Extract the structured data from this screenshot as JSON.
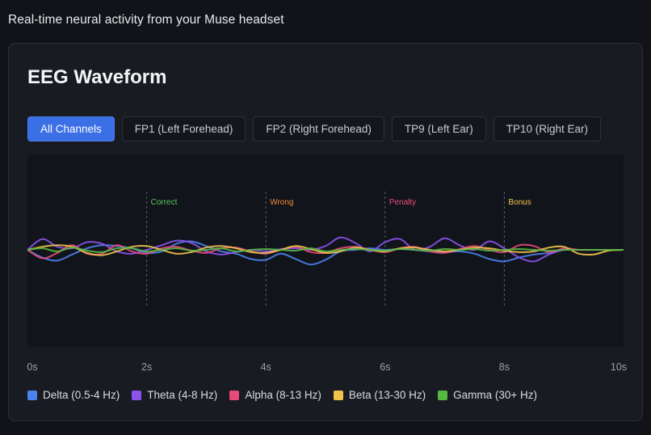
{
  "header": {
    "subtitle": "Real-time neural activity from your Muse headset"
  },
  "card": {
    "title": "EEG Waveform",
    "tabs": [
      {
        "label": "All Channels",
        "active": true
      },
      {
        "label": "FP1 (Left Forehead)",
        "active": false
      },
      {
        "label": "FP2 (Right Forehead)",
        "active": false
      },
      {
        "label": "TP9 (Left Ear)",
        "active": false
      },
      {
        "label": "TP10 (Right Ear)",
        "active": false
      }
    ]
  },
  "chart_data": {
    "type": "line",
    "xlabel": "",
    "ylabel": "",
    "xlim": [
      0,
      10
    ],
    "ylim": [
      -1,
      1
    ],
    "x_ticks": [
      "0s",
      "2s",
      "4s",
      "6s",
      "8s",
      "10s"
    ],
    "grid": false,
    "legend_position": "bottom-left",
    "events": [
      {
        "time": 2,
        "label": "Correct",
        "color": "#5cc85a"
      },
      {
        "time": 4,
        "label": "Wrong",
        "color": "#f08a3c"
      },
      {
        "time": 6,
        "label": "Penalty",
        "color": "#ec4c7a"
      },
      {
        "time": 8,
        "label": "Bonus",
        "color": "#f2c84b"
      }
    ],
    "x": [
      0,
      0.25,
      0.5,
      0.75,
      1,
      1.25,
      1.5,
      1.75,
      2,
      2.25,
      2.5,
      2.75,
      3,
      3.25,
      3.5,
      3.75,
      4,
      4.25,
      4.5,
      4.75,
      5,
      5.25,
      5.5,
      5.75,
      6,
      6.25,
      6.5,
      6.75,
      7,
      7.25,
      7.5,
      7.75,
      8,
      8.25,
      8.5,
      8.75,
      9,
      9.25,
      9.5,
      9.75,
      10
    ],
    "series": [
      {
        "name": "Delta (0.5-4 Hz)",
        "color": "#4c82f0",
        "values": [
          0,
          -0.1,
          -0.14,
          -0.06,
          0.02,
          0.06,
          0.05,
          0.02,
          -0.04,
          -0.02,
          0.08,
          0.11,
          0.05,
          -0.02,
          -0.05,
          -0.12,
          -0.13,
          -0.05,
          -0.12,
          -0.19,
          -0.13,
          -0.02,
          0.0,
          0.02,
          0.0,
          0.01,
          0.0,
          -0.02,
          -0.03,
          -0.02,
          -0.05,
          -0.12,
          -0.15,
          -0.1,
          -0.06,
          -0.04,
          0.0,
          0.0,
          0.0,
          0.0,
          0.0
        ]
      },
      {
        "name": "Theta (4-8 Hz)",
        "color": "#8c52ee",
        "values": [
          0,
          0.14,
          0.04,
          0.02,
          0.1,
          0.08,
          -0.02,
          -0.05,
          0.0,
          0.06,
          0.12,
          0.09,
          -0.02,
          -0.06,
          -0.03,
          0.0,
          -0.02,
          0.01,
          0.02,
          0.0,
          0.05,
          0.16,
          0.09,
          -0.02,
          0.1,
          0.14,
          0.0,
          0.04,
          0.15,
          0.06,
          0.0,
          0.11,
          0.02,
          -0.1,
          -0.15,
          -0.06,
          0.0,
          0.0,
          0.0,
          0.0,
          0.0
        ]
      },
      {
        "name": "Alpha (8-13 Hz)",
        "color": "#e84a78",
        "values": [
          0,
          -0.11,
          -0.04,
          0.06,
          -0.05,
          -0.05,
          0.06,
          -0.02,
          -0.05,
          0.02,
          0.04,
          -0.01,
          -0.04,
          0.02,
          0.03,
          -0.02,
          -0.05,
          0.0,
          0.04,
          -0.03,
          -0.04,
          0.02,
          0.04,
          0.0,
          -0.03,
          0.02,
          0.04,
          -0.02,
          -0.04,
          0.01,
          0.05,
          0.0,
          -0.03,
          0.06,
          0.05,
          -0.03,
          0.02,
          0.0,
          0.0,
          0.0,
          0.0
        ]
      },
      {
        "name": "Beta (13-30 Hz)",
        "color": "#f0c24a",
        "values": [
          0,
          0.04,
          0.06,
          0.04,
          -0.04,
          -0.07,
          -0.02,
          0.04,
          0.05,
          0.0,
          -0.05,
          -0.03,
          0.03,
          0.05,
          0.02,
          -0.03,
          -0.04,
          0.0,
          0.05,
          0.01,
          -0.04,
          -0.02,
          0.03,
          0.0,
          -0.02,
          0.02,
          0.03,
          0.0,
          -0.02,
          0.0,
          0.03,
          0.02,
          -0.01,
          -0.03,
          -0.02,
          0.03,
          0.04,
          -0.05,
          -0.06,
          -0.01,
          0.0
        ]
      },
      {
        "name": "Gamma (30+ Hz)",
        "color": "#57b843",
        "values": [
          0,
          0.02,
          -0.02,
          0.03,
          -0.01,
          -0.03,
          0.02,
          0.02,
          -0.02,
          0.0,
          0.02,
          -0.01,
          0.0,
          0.02,
          -0.02,
          0.0,
          0.01,
          0.0,
          -0.01,
          0.02,
          -0.02,
          0.0,
          0.01,
          0.0,
          -0.01,
          0.01,
          0.0,
          -0.01,
          0.01,
          0.0,
          0.01,
          -0.01,
          0.0,
          0.01,
          0.0,
          -0.01,
          0.0,
          0.0,
          0.0,
          0.0,
          0.0
        ]
      }
    ]
  }
}
